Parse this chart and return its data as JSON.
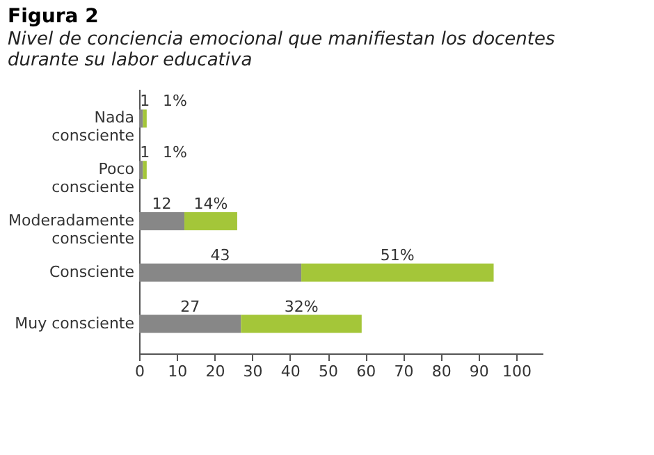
{
  "chart_data": {
    "type": "bar",
    "orientation": "horizontal",
    "stacked": true,
    "title": "Figura 2",
    "subtitle": "Nivel de conciencia emocional que manifiestan los docentes durante su labor educativa",
    "categories": [
      "Nada consciente",
      "Poco consciente",
      "Moderadamente consciente",
      "Consciente",
      "Muy consciente"
    ],
    "series": [
      {
        "color": "#878787",
        "values": [
          1,
          1,
          12,
          43,
          27
        ],
        "value_labels": [
          "1",
          "1",
          "12",
          "43",
          "27"
        ]
      },
      {
        "color": "#a4c639",
        "values": [
          1,
          1,
          14,
          51,
          32
        ],
        "value_labels": [
          "1%",
          "1%",
          "14%",
          "51%",
          "32%"
        ]
      }
    ],
    "xlim": [
      0,
      107
    ],
    "xticks": [
      0,
      10,
      20,
      30,
      40,
      50,
      60,
      70,
      80,
      90,
      100
    ],
    "grid": false,
    "legend": false
  }
}
